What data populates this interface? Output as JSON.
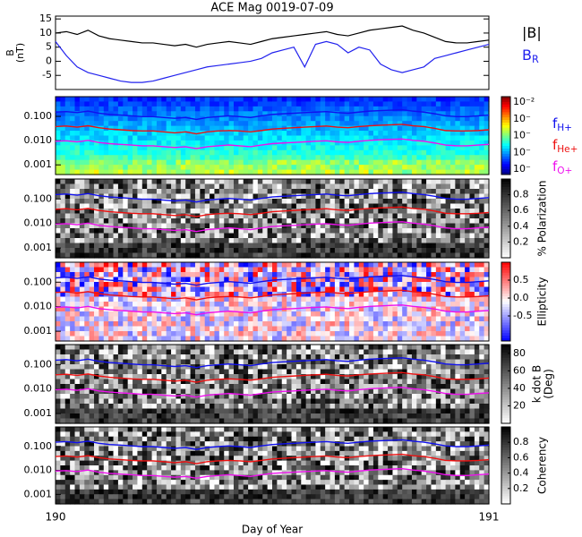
{
  "chart_data": {
    "title": "ACE Mag 0019-07-09",
    "x_label": "Day of Year",
    "x": [
      190,
      190.025,
      190.05,
      190.075,
      190.1,
      190.125,
      190.15,
      190.175,
      190.2,
      190.225,
      190.25,
      190.275,
      190.3,
      190.325,
      190.35,
      190.375,
      190.4,
      190.425,
      190.45,
      190.475,
      190.5,
      190.525,
      190.55,
      190.575,
      190.6,
      190.625,
      190.65,
      190.675,
      190.7,
      190.725,
      190.75,
      190.775,
      190.8,
      190.825,
      190.85,
      190.875,
      190.9,
      190.925,
      190.95,
      190.975,
      191
    ],
    "xlim": [
      190,
      191
    ],
    "xticks": [
      190,
      191
    ],
    "line_panel": {
      "type": "line",
      "y_label": [
        "B",
        "(nT)"
      ],
      "ylim": [
        -10,
        16
      ],
      "yticks": [
        -5,
        0,
        5,
        10,
        15
      ],
      "series": [
        {
          "name": "|B|",
          "color": "#000000",
          "values": [
            10,
            10.5,
            9.5,
            11,
            9,
            8,
            7.5,
            7,
            6.5,
            6.5,
            6,
            5.5,
            6,
            5,
            6,
            6.5,
            7,
            6.5,
            6,
            7,
            8,
            8.5,
            9,
            9.5,
            10,
            10.5,
            9.5,
            9,
            10,
            11,
            11.5,
            12,
            12.5,
            11,
            10,
            8.5,
            7,
            6.5,
            6.5,
            7,
            7.5
          ]
        },
        {
          "name": "B",
          "name_subscript": "R",
          "color": "#2222ee",
          "values": [
            7,
            2,
            -2,
            -4,
            -5,
            -6,
            -7,
            -7.5,
            -7.5,
            -7,
            -6,
            -5,
            -4,
            -3,
            -2,
            -1.5,
            -1,
            -0.5,
            0,
            1,
            3,
            4,
            5,
            -2,
            6,
            7,
            6,
            3,
            5,
            4,
            -1,
            -3,
            -4,
            -3,
            -2,
            1,
            2,
            3,
            4,
            5,
            6
          ]
        }
      ]
    },
    "freq_axis": {
      "yscale": "log",
      "ylim": [
        0.0004,
        0.65
      ],
      "yticks": [
        {
          "value": 0.1,
          "label": "0.100"
        },
        {
          "value": 0.01,
          "label": "0.010"
        },
        {
          "value": 0.001,
          "label": "0.001"
        }
      ]
    },
    "overlay_series": [
      {
        "name": "f",
        "name_subscript": "H+",
        "color": "#1010ee",
        "values": [
          0.15,
          0.158,
          0.143,
          0.165,
          0.135,
          0.12,
          0.113,
          0.105,
          0.098,
          0.098,
          0.09,
          0.083,
          0.09,
          0.075,
          0.09,
          0.098,
          0.105,
          0.098,
          0.09,
          0.105,
          0.12,
          0.128,
          0.135,
          0.143,
          0.15,
          0.158,
          0.143,
          0.135,
          0.15,
          0.165,
          0.173,
          0.18,
          0.188,
          0.165,
          0.15,
          0.128,
          0.105,
          0.098,
          0.098,
          0.105,
          0.113
        ]
      },
      {
        "name": "f",
        "name_subscript": "He+",
        "color": "#ee1010",
        "values": [
          0.038,
          0.04,
          0.036,
          0.041,
          0.034,
          0.03,
          0.028,
          0.026,
          0.025,
          0.025,
          0.023,
          0.021,
          0.023,
          0.019,
          0.023,
          0.025,
          0.026,
          0.025,
          0.023,
          0.026,
          0.03,
          0.032,
          0.034,
          0.036,
          0.038,
          0.04,
          0.036,
          0.034,
          0.038,
          0.041,
          0.043,
          0.045,
          0.047,
          0.041,
          0.038,
          0.032,
          0.026,
          0.025,
          0.025,
          0.026,
          0.028
        ]
      },
      {
        "name": "f",
        "name_subscript": "O+",
        "color": "#ee10ee",
        "values": [
          0.0094,
          0.0098,
          0.0089,
          0.0103,
          0.0084,
          0.0075,
          0.007,
          0.0066,
          0.0061,
          0.0061,
          0.0056,
          0.0052,
          0.0056,
          0.0047,
          0.0056,
          0.0061,
          0.0066,
          0.0061,
          0.0056,
          0.0066,
          0.0075,
          0.008,
          0.0084,
          0.0089,
          0.0094,
          0.0098,
          0.0089,
          0.0084,
          0.0094,
          0.0103,
          0.0108,
          0.0113,
          0.0117,
          0.0103,
          0.0094,
          0.008,
          0.0066,
          0.0061,
          0.0061,
          0.0066,
          0.007
        ]
      }
    ],
    "spectrogram_panels": [
      {
        "type": "spectrogram",
        "colormap": "jet",
        "colorbar_labels": [
          "10⁻²",
          "10⁻",
          "10⁻",
          "10⁻",
          "10⁻"
        ]
      },
      {
        "type": "spectrogram",
        "colormap": "gray",
        "clim": [
          0,
          1
        ],
        "cticks": [
          0.2,
          0.4,
          0.6,
          0.8
        ],
        "colorbar_label": "% Polarization"
      },
      {
        "type": "spectrogram",
        "colormap": "bwr",
        "clim": [
          -1.2,
          1
        ],
        "cticks": [
          {
            "value": -0.5,
            "label": "-0.5"
          },
          {
            "value": 0,
            "label": "0.0"
          },
          {
            "value": 0.5,
            "label": "0.5"
          }
        ],
        "colorbar_label": "Ellipticity"
      },
      {
        "type": "spectrogram",
        "colormap": "gray",
        "clim": [
          0,
          90
        ],
        "cticks": [
          20,
          40,
          60,
          80
        ],
        "colorbar_label": [
          "k dot B",
          "(Deg)"
        ]
      },
      {
        "type": "spectrogram",
        "colormap": "gray",
        "clim": [
          0,
          1
        ],
        "cticks": [
          0.2,
          0.4,
          0.6,
          0.8
        ],
        "colorbar_label": "Coherency"
      }
    ]
  }
}
